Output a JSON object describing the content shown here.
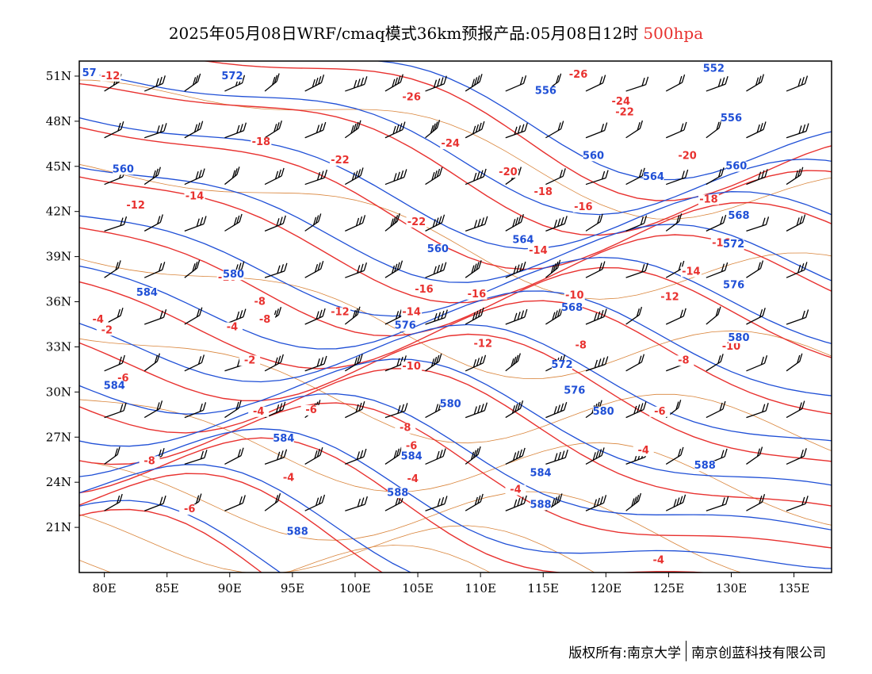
{
  "title": {
    "main": "2025年05月08日WRF/cmaq模式36km预报产品:05月08日12时",
    "level": "500hpa"
  },
  "colors": {
    "temperature": "#e8312f",
    "height": "#1f4fd6",
    "border": "#d9843a",
    "wind": "#000000"
  },
  "map": {
    "lon_range": [
      78,
      138
    ],
    "lat_range": [
      18,
      52
    ],
    "lat_ticks": [
      "51N",
      "48N",
      "45N",
      "42N",
      "39N",
      "36N",
      "33N",
      "30N",
      "27N",
      "24N",
      "21N"
    ],
    "lat_values": [
      51,
      48,
      45,
      42,
      39,
      36,
      33,
      30,
      27,
      24,
      21
    ],
    "lon_ticks": [
      "80E",
      "85E",
      "90E",
      "95E",
      "100E",
      "105E",
      "110E",
      "115E",
      "120E",
      "125E",
      "130E",
      "135E"
    ],
    "lon_values": [
      80,
      85,
      90,
      95,
      100,
      105,
      110,
      115,
      120,
      125,
      130,
      135
    ]
  },
  "temperature_labels": [
    {
      "text": "-12",
      "lon": 80.5,
      "lat": 50.8
    },
    {
      "text": "-26",
      "lon": 117.8,
      "lat": 50.9
    },
    {
      "text": "-26",
      "lon": 104.5,
      "lat": 49.4
    },
    {
      "text": "-24",
      "lon": 121.2,
      "lat": 49.1
    },
    {
      "text": "-22",
      "lon": 121.5,
      "lat": 48.4
    },
    {
      "text": "-18",
      "lon": 92.5,
      "lat": 46.4
    },
    {
      "text": "-22",
      "lon": 98.8,
      "lat": 45.2
    },
    {
      "text": "-24",
      "lon": 107.6,
      "lat": 46.3
    },
    {
      "text": "-20",
      "lon": 112.2,
      "lat": 44.4
    },
    {
      "text": "-20",
      "lon": 126.5,
      "lat": 45.5
    },
    {
      "text": "-18",
      "lon": 115,
      "lat": 43.1
    },
    {
      "text": "-16",
      "lon": 118.2,
      "lat": 42.1
    },
    {
      "text": "-18",
      "lon": 128.2,
      "lat": 42.6
    },
    {
      "text": "-14",
      "lon": 87.2,
      "lat": 42.8
    },
    {
      "text": "-12",
      "lon": 82.5,
      "lat": 42.2
    },
    {
      "text": "-22",
      "lon": 104.9,
      "lat": 41.1
    },
    {
      "text": "-16",
      "lon": 129.2,
      "lat": 39.7
    },
    {
      "text": "-14",
      "lon": 114.6,
      "lat": 39.2
    },
    {
      "text": "-14",
      "lon": 126.8,
      "lat": 37.8
    },
    {
      "text": "-10",
      "lon": 89.8,
      "lat": 37.4
    },
    {
      "text": "-8",
      "lon": 92.4,
      "lat": 35.8
    },
    {
      "text": "-10",
      "lon": 117.5,
      "lat": 36.2
    },
    {
      "text": "-12",
      "lon": 125.1,
      "lat": 36.1
    },
    {
      "text": "-16",
      "lon": 105.5,
      "lat": 36.6
    },
    {
      "text": "-16",
      "lon": 109.7,
      "lat": 36.3
    },
    {
      "text": "-14",
      "lon": 104.5,
      "lat": 35.1
    },
    {
      "text": "-12",
      "lon": 98.8,
      "lat": 35.1
    },
    {
      "text": "-4",
      "lon": 79.5,
      "lat": 34.6
    },
    {
      "text": "-2",
      "lon": 80.2,
      "lat": 33.9
    },
    {
      "text": "-8",
      "lon": 92.8,
      "lat": 34.6
    },
    {
      "text": "-4",
      "lon": 90.2,
      "lat": 34.1
    },
    {
      "text": "-12",
      "lon": 110.2,
      "lat": 33
    },
    {
      "text": "-8",
      "lon": 118,
      "lat": 32.9
    },
    {
      "text": "-10",
      "lon": 130,
      "lat": 32.8
    },
    {
      "text": "-2",
      "lon": 91.6,
      "lat": 31.9
    },
    {
      "text": "-10",
      "lon": 104.5,
      "lat": 31.5
    },
    {
      "text": "-8",
      "lon": 126.2,
      "lat": 31.9
    },
    {
      "text": "-6",
      "lon": 81.5,
      "lat": 30.7
    },
    {
      "text": "-4",
      "lon": 92.3,
      "lat": 28.5
    },
    {
      "text": "-6",
      "lon": 96.5,
      "lat": 28.6
    },
    {
      "text": "-6",
      "lon": 124.3,
      "lat": 28.5
    },
    {
      "text": "-8",
      "lon": 104,
      "lat": 27.4
    },
    {
      "text": "-6",
      "lon": 104.5,
      "lat": 26.2
    },
    {
      "text": "-4",
      "lon": 123,
      "lat": 25.9
    },
    {
      "text": "-8",
      "lon": 83.6,
      "lat": 25.2
    },
    {
      "text": "-4",
      "lon": 94.7,
      "lat": 24.1
    },
    {
      "text": "-4",
      "lon": 104.6,
      "lat": 24.0
    },
    {
      "text": "-4",
      "lon": 112.8,
      "lat": 23.3
    },
    {
      "text": "-6",
      "lon": 86.8,
      "lat": 22.0
    },
    {
      "text": "-4",
      "lon": 124.2,
      "lat": 18.6
    }
  ],
  "height_labels": [
    {
      "text": "57",
      "lon": 78.8,
      "lat": 51.0
    },
    {
      "text": "572",
      "lon": 90.2,
      "lat": 50.8
    },
    {
      "text": "552",
      "lon": 128.6,
      "lat": 51.3
    },
    {
      "text": "556",
      "lon": 115.2,
      "lat": 49.8
    },
    {
      "text": "556",
      "lon": 130,
      "lat": 48.0
    },
    {
      "text": "560",
      "lon": 81.5,
      "lat": 44.6
    },
    {
      "text": "560",
      "lon": 119,
      "lat": 45.5
    },
    {
      "text": "560",
      "lon": 130.4,
      "lat": 44.8
    },
    {
      "text": "564",
      "lon": 123.8,
      "lat": 44.1
    },
    {
      "text": "568",
      "lon": 130.6,
      "lat": 41.5
    },
    {
      "text": "564",
      "lon": 113.4,
      "lat": 39.9
    },
    {
      "text": "560",
      "lon": 106.6,
      "lat": 39.3
    },
    {
      "text": "572",
      "lon": 130.2,
      "lat": 39.6
    },
    {
      "text": "576",
      "lon": 130.2,
      "lat": 36.9
    },
    {
      "text": "584",
      "lon": 83.4,
      "lat": 36.4
    },
    {
      "text": "580",
      "lon": 90.3,
      "lat": 37.6
    },
    {
      "text": "568",
      "lon": 117.3,
      "lat": 35.4
    },
    {
      "text": "576",
      "lon": 104.0,
      "lat": 34.2
    },
    {
      "text": "580",
      "lon": 130.6,
      "lat": 33.4
    },
    {
      "text": "572",
      "lon": 116.5,
      "lat": 31.6
    },
    {
      "text": "576",
      "lon": 117.5,
      "lat": 29.9
    },
    {
      "text": "584",
      "lon": 80.8,
      "lat": 30.2
    },
    {
      "text": "580",
      "lon": 107.6,
      "lat": 29.0
    },
    {
      "text": "580",
      "lon": 119.8,
      "lat": 28.5
    },
    {
      "text": "584",
      "lon": 94.3,
      "lat": 26.7
    },
    {
      "text": "584",
      "lon": 104.5,
      "lat": 25.5
    },
    {
      "text": "588",
      "lon": 127.9,
      "lat": 24.9
    },
    {
      "text": "584",
      "lon": 114.8,
      "lat": 24.4
    },
    {
      "text": "588",
      "lon": 103.4,
      "lat": 23.1
    },
    {
      "text": "588",
      "lon": 114.8,
      "lat": 22.3
    },
    {
      "text": "588",
      "lon": 95.4,
      "lat": 20.5
    }
  ],
  "copyright": {
    "left": "版权所有:南京大学",
    "right": "南京创蓝科技有限公司"
  }
}
